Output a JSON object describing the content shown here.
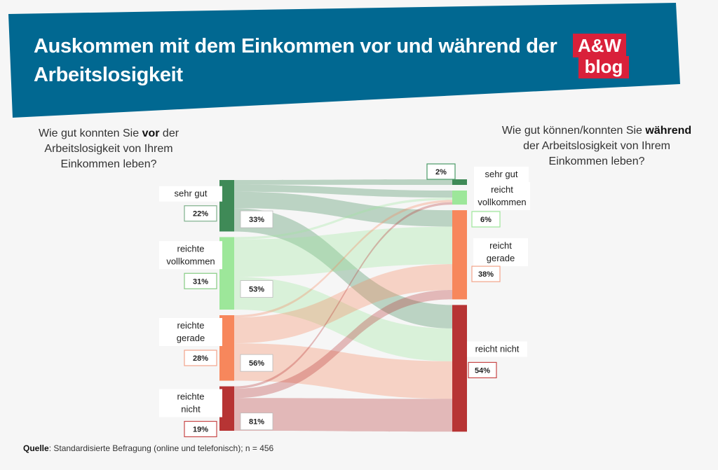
{
  "header": {
    "title_line1": "Auskommen mit dem Einkommen vor und während der",
    "title_line2": "Arbeitslosigkeit",
    "logo_line1": "A&W",
    "logo_line2": "blog"
  },
  "left_question": {
    "before": "Wie gut konnten Sie ",
    "bold": "vor",
    "after": " der Arbeitslosigkeit von Ihrem Einkommen leben?"
  },
  "right_question": {
    "before": "Wie gut können/konnten Sie ",
    "bold": "während",
    "after": " der Arbeitslosigkeit von Ihrem Einkommen leben?"
  },
  "source": {
    "label": "Quelle",
    "text": ": Standardisierte Befragung (online und telefonisch); n = 456"
  },
  "colors": {
    "banner": "#016891",
    "logo": "#d9203a",
    "sehr_gut": "#3f8a57",
    "vollkommen": "#9de79a",
    "gerade": "#f7875c",
    "nicht": "#b73434"
  },
  "chart_data": {
    "type": "sankey",
    "title": "Auskommen mit dem Einkommen vor und während der Arbeitslosigkeit",
    "left_nodes": [
      {
        "label": "sehr gut",
        "share": "22%",
        "value": 22,
        "flow_label": "33%",
        "color": "#3f8a57",
        "box_color": "#7fb08c"
      },
      {
        "label": "reichte vollkommen",
        "share": "31%",
        "value": 31,
        "flow_label": "53%",
        "color": "#9de79a",
        "box_color": "#86cc83"
      },
      {
        "label": "reichte gerade",
        "share": "28%",
        "value": 28,
        "flow_label": "56%",
        "color": "#f7875c",
        "box_color": "#f2a48a"
      },
      {
        "label": "reichte nicht",
        "share": "19%",
        "value": 19,
        "flow_label": "81%",
        "color": "#b73434",
        "box_color": "#c84848"
      }
    ],
    "right_nodes": [
      {
        "label": "sehr gut",
        "share": "2%",
        "value": 2,
        "color": "#3f8a57",
        "box_color": "#4a9a66"
      },
      {
        "label": "reicht vollkommen",
        "share": "6%",
        "value": 6,
        "color": "#9de79a",
        "box_color": "#9de79a"
      },
      {
        "label": "reicht gerade",
        "share": "38%",
        "value": 38,
        "color": "#f7875c",
        "box_color": "#f2a48a"
      },
      {
        "label": "reicht nicht",
        "share": "54%",
        "value": 54,
        "color": "#b73434",
        "box_color": "#c84848"
      }
    ],
    "flows": [
      {
        "source": 0,
        "target": 0,
        "value": 2
      },
      {
        "source": 0,
        "target": 1,
        "value": 3
      },
      {
        "source": 0,
        "target": 2,
        "value": 7
      },
      {
        "source": 0,
        "target": 3,
        "value": 10
      },
      {
        "source": 1,
        "target": 1,
        "value": 1
      },
      {
        "source": 1,
        "target": 2,
        "value": 16
      },
      {
        "source": 1,
        "target": 3,
        "value": 14
      },
      {
        "source": 2,
        "target": 1,
        "value": 1
      },
      {
        "source": 2,
        "target": 2,
        "value": 11
      },
      {
        "source": 2,
        "target": 3,
        "value": 16
      },
      {
        "source": 3,
        "target": 1,
        "value": 1
      },
      {
        "source": 3,
        "target": 2,
        "value": 4
      },
      {
        "source": 3,
        "target": 3,
        "value": 14
      }
    ]
  }
}
